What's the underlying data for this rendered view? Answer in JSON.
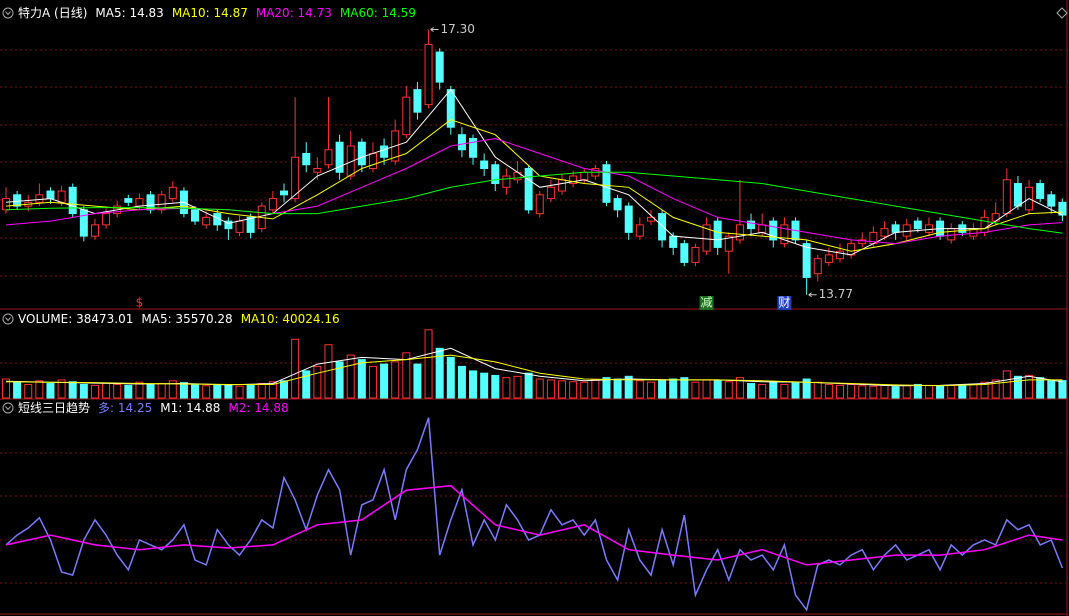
{
  "chart_data": [
    {
      "type": "candlestick",
      "title": "特力A (日线)",
      "up_color": "#ff3232",
      "down_color": "#54ffff",
      "ylim": [
        13.7,
        17.4
      ],
      "open": [
        14.9,
        15.1,
        14.95,
        15.0,
        15.15,
        15.0,
        15.2,
        14.9,
        14.55,
        14.7,
        14.85,
        15.05,
        14.95,
        15.1,
        14.9,
        15.05,
        15.15,
        14.9,
        14.7,
        14.85,
        14.75,
        14.6,
        14.8,
        14.65,
        14.9,
        15.15,
        15.05,
        15.65,
        15.4,
        15.5,
        15.8,
        15.35,
        15.8,
        15.45,
        15.75,
        15.55,
        15.9,
        16.5,
        16.3,
        17.0,
        16.5,
        15.9,
        15.85,
        15.55,
        15.5,
        15.2,
        15.3,
        15.45,
        14.85,
        15.05,
        15.15,
        15.25,
        15.3,
        15.35,
        15.5,
        15.05,
        14.95,
        14.55,
        14.75,
        14.85,
        14.55,
        14.45,
        14.2,
        14.35,
        14.75,
        14.35,
        14.5,
        14.75,
        14.6,
        14.75,
        14.45,
        14.75,
        14.45,
        14.05,
        14.2,
        14.25,
        14.3,
        14.45,
        14.45,
        14.55,
        14.7,
        14.55,
        14.75,
        14.6,
        14.75,
        14.5,
        14.7,
        14.55,
        14.6,
        14.75,
        14.85,
        15.25,
        14.9,
        15.25,
        15.1,
        15.0
      ],
      "high": [
        15.2,
        15.15,
        15.1,
        15.25,
        15.2,
        15.22,
        15.25,
        14.95,
        14.78,
        14.92,
        15.02,
        15.1,
        15.12,
        15.15,
        15.15,
        15.28,
        15.2,
        14.95,
        14.88,
        14.9,
        14.8,
        14.82,
        14.85,
        15.0,
        15.15,
        15.25,
        16.4,
        15.8,
        15.6,
        16.4,
        15.9,
        15.95,
        15.85,
        15.8,
        15.85,
        16.1,
        16.55,
        16.6,
        17.3,
        17.05,
        16.55,
        16.0,
        15.9,
        15.65,
        15.55,
        15.45,
        15.55,
        15.5,
        15.15,
        15.3,
        15.38,
        15.42,
        15.45,
        15.5,
        15.55,
        15.1,
        15.0,
        14.8,
        14.9,
        14.9,
        14.6,
        14.5,
        14.45,
        14.8,
        14.8,
        14.6,
        15.3,
        14.85,
        14.85,
        14.8,
        14.8,
        14.8,
        14.5,
        14.3,
        14.4,
        14.45,
        14.5,
        14.6,
        14.68,
        14.75,
        14.75,
        14.78,
        14.8,
        14.8,
        14.8,
        14.72,
        14.75,
        14.72,
        14.9,
        15.0,
        15.45,
        15.35,
        15.3,
        15.3,
        15.15,
        15.05
      ],
      "low": [
        14.85,
        14.9,
        14.88,
        14.95,
        14.98,
        14.95,
        14.8,
        14.48,
        14.5,
        14.65,
        14.8,
        14.95,
        14.9,
        14.85,
        14.85,
        15.0,
        14.8,
        14.7,
        14.65,
        14.62,
        14.5,
        14.55,
        14.52,
        14.6,
        14.85,
        15.0,
        15.0,
        15.4,
        15.3,
        15.45,
        15.3,
        15.3,
        15.4,
        15.4,
        15.5,
        15.5,
        15.85,
        16.1,
        16.25,
        16.5,
        15.9,
        15.6,
        15.5,
        15.35,
        15.15,
        15.1,
        15.25,
        14.85,
        14.8,
        15.0,
        15.1,
        15.2,
        15.25,
        15.3,
        14.95,
        14.8,
        14.5,
        14.5,
        14.7,
        14.4,
        14.3,
        14.15,
        14.15,
        14.3,
        14.3,
        14.05,
        14.45,
        14.55,
        14.55,
        14.4,
        14.4,
        14.45,
        13.77,
        13.95,
        14.15,
        14.2,
        14.25,
        14.4,
        14.4,
        14.5,
        14.5,
        14.5,
        14.6,
        14.55,
        14.5,
        14.45,
        14.55,
        14.5,
        14.55,
        14.7,
        14.8,
        14.9,
        14.85,
        15.0,
        14.85,
        14.75
      ],
      "close": [
        15.05,
        14.95,
        15.0,
        15.1,
        15.05,
        15.15,
        14.85,
        14.55,
        14.7,
        14.85,
        14.95,
        15.0,
        15.05,
        14.9,
        15.1,
        15.2,
        14.85,
        14.75,
        14.8,
        14.7,
        14.65,
        14.75,
        14.6,
        14.95,
        15.05,
        15.1,
        15.6,
        15.5,
        15.45,
        15.7,
        15.4,
        15.75,
        15.5,
        15.65,
        15.6,
        15.95,
        16.4,
        16.2,
        17.1,
        16.6,
        16.0,
        15.7,
        15.6,
        15.45,
        15.25,
        15.35,
        15.4,
        14.9,
        15.1,
        15.2,
        15.3,
        15.35,
        15.4,
        15.45,
        15.0,
        14.9,
        14.6,
        14.7,
        14.8,
        14.5,
        14.4,
        14.2,
        14.4,
        14.7,
        14.4,
        14.55,
        14.7,
        14.65,
        14.7,
        14.5,
        14.7,
        14.5,
        14.0,
        14.25,
        14.3,
        14.35,
        14.45,
        14.5,
        14.6,
        14.65,
        14.6,
        14.7,
        14.65,
        14.7,
        14.55,
        14.65,
        14.6,
        14.65,
        14.8,
        14.85,
        15.3,
        14.95,
        15.2,
        15.05,
        14.95,
        14.83
      ],
      "max_label": "17.30",
      "min_label": "13.77",
      "signals": [
        {
          "text": "$",
          "x": 12,
          "color": "#ff3030"
        },
        {
          "text": "减",
          "x": 63,
          "color": "#c8ffc8",
          "bg": "#1e6e1e"
        },
        {
          "text": "财",
          "x": 70,
          "color": "#ffffff",
          "bg": "#2040c0"
        }
      ],
      "series": [
        {
          "name": "MA5: 14.83",
          "color": "#ffffff",
          "x": [
            0,
            4,
            8,
            12,
            16,
            20,
            24,
            28,
            32,
            36,
            40,
            44,
            48,
            52,
            56,
            60,
            64,
            68,
            72,
            76,
            80,
            84,
            88,
            92,
            95
          ],
          "values": [
            15.0,
            15.05,
            14.85,
            14.95,
            15.0,
            14.72,
            14.85,
            15.35,
            15.6,
            15.8,
            16.5,
            15.6,
            15.2,
            15.3,
            15.1,
            14.55,
            14.5,
            14.6,
            14.4,
            14.3,
            14.6,
            14.65,
            14.65,
            15.05,
            14.83
          ]
        },
        {
          "name": "MA10: 14.87",
          "color": "#ffff00",
          "x": [
            0,
            4,
            8,
            12,
            16,
            20,
            24,
            28,
            32,
            36,
            40,
            44,
            48,
            52,
            56,
            60,
            64,
            68,
            72,
            76,
            80,
            84,
            88,
            92,
            95
          ],
          "values": [
            14.95,
            15.0,
            14.95,
            14.9,
            14.95,
            14.85,
            14.78,
            15.1,
            15.45,
            15.65,
            16.1,
            15.9,
            15.35,
            15.25,
            15.2,
            14.8,
            14.6,
            14.55,
            14.5,
            14.35,
            14.45,
            14.6,
            14.65,
            14.85,
            14.87
          ]
        },
        {
          "name": "MA20: 14.73",
          "color": "#ff00ff",
          "x": [
            0,
            4,
            8,
            12,
            16,
            20,
            24,
            28,
            32,
            36,
            40,
            44,
            48,
            52,
            56,
            60,
            64,
            68,
            72,
            76,
            80,
            84,
            88,
            92,
            95
          ],
          "values": [
            14.7,
            14.75,
            14.85,
            14.9,
            14.92,
            14.9,
            14.85,
            14.95,
            15.2,
            15.45,
            15.75,
            15.85,
            15.65,
            15.45,
            15.35,
            15.05,
            14.8,
            14.7,
            14.6,
            14.5,
            14.45,
            14.55,
            14.6,
            14.7,
            14.73
          ]
        },
        {
          "name": "MA60: 14.59",
          "color": "#00ff00",
          "x": [
            0,
            4,
            8,
            12,
            16,
            20,
            24,
            28,
            32,
            36,
            40,
            44,
            48,
            52,
            56,
            60,
            64,
            68,
            72,
            76,
            80,
            84,
            88,
            92,
            95
          ],
          "values": [
            14.9,
            14.92,
            14.93,
            14.93,
            14.92,
            14.9,
            14.85,
            14.85,
            14.95,
            15.05,
            15.2,
            15.3,
            15.35,
            15.4,
            15.4,
            15.35,
            15.3,
            15.25,
            15.15,
            15.05,
            14.95,
            14.85,
            14.75,
            14.65,
            14.59
          ]
        }
      ]
    },
    {
      "type": "volume",
      "ylim": [
        0,
        155000
      ],
      "series": [
        {
          "name": "VOLUME: 38473.01",
          "color": "#ffffff",
          "values": [
            42000,
            35000,
            30000,
            38000,
            32000,
            40000,
            36000,
            30000,
            28000,
            33000,
            30000,
            28000,
            35000,
            30000,
            32000,
            38000,
            34000,
            29000,
            27000,
            30000,
            28000,
            26000,
            30000,
            32000,
            36000,
            38000,
            130000,
            60000,
            70000,
            118000,
            80000,
            95000,
            85000,
            70000,
            75000,
            80000,
            100000,
            75000,
            151000,
            110000,
            90000,
            70000,
            60000,
            55000,
            50000,
            45000,
            48000,
            55000,
            42000,
            40000,
            38000,
            36000,
            35000,
            40000,
            45000,
            42000,
            48000,
            38000,
            35000,
            40000,
            42000,
            45000,
            35000,
            40000,
            38000,
            36000,
            45000,
            32000,
            30000,
            35000,
            30000,
            33000,
            42000,
            35000,
            30000,
            28000,
            30000,
            27000,
            26000,
            28000,
            25000,
            27000,
            30000,
            28000,
            26000,
            28000,
            27000,
            30000,
            35000,
            40000,
            60000,
            48000,
            50000,
            45000,
            40000,
            38473.01
          ]
        },
        {
          "name": "MA5: 35570.28",
          "color": "#ffffff",
          "x": [
            0,
            4,
            8,
            12,
            16,
            20,
            24,
            28,
            32,
            36,
            40,
            44,
            48,
            52,
            56,
            60,
            64,
            68,
            72,
            76,
            80,
            84,
            88,
            92,
            95
          ],
          "values": [
            37000,
            35000,
            33000,
            31000,
            32000,
            29000,
            32000,
            75000,
            90000,
            85000,
            110000,
            65000,
            48000,
            38000,
            42000,
            40000,
            40000,
            36000,
            35000,
            31000,
            27000,
            28000,
            32000,
            48000,
            35570.28
          ]
        },
        {
          "name": "MA10: 40024.16",
          "color": "#ffff00",
          "x": [
            0,
            4,
            8,
            12,
            16,
            20,
            24,
            28,
            32,
            36,
            40,
            44,
            48,
            52,
            56,
            60,
            64,
            68,
            72,
            76,
            80,
            84,
            88,
            92,
            95
          ],
          "values": [
            36000,
            35000,
            34000,
            32000,
            31000,
            30000,
            30000,
            55000,
            78000,
            85000,
            95000,
            80000,
            55000,
            42000,
            40000,
            40000,
            40000,
            38000,
            35000,
            32000,
            29000,
            27000,
            30000,
            40000,
            40024.16
          ]
        }
      ]
    },
    {
      "type": "line",
      "title": "短线三日趋势",
      "ylim": [
        13.26,
        17.69
      ],
      "series": [
        {
          "name": "多: 14.25",
          "color": "#7b7bff",
          "values": [
            14.77,
            14.99,
            15.15,
            15.38,
            14.88,
            14.16,
            14.09,
            14.88,
            15.33,
            14.99,
            14.54,
            14.21,
            14.88,
            14.77,
            14.66,
            14.88,
            15.22,
            14.43,
            14.32,
            15.11,
            14.77,
            14.54,
            14.88,
            15.33,
            15.15,
            16.28,
            15.78,
            15.11,
            15.89,
            16.46,
            16.01,
            14.54,
            15.67,
            15.78,
            16.46,
            15.33,
            16.46,
            16.91,
            17.63,
            14.54,
            15.33,
            16.01,
            14.77,
            15.33,
            14.88,
            15.67,
            15.33,
            14.88,
            14.99,
            15.56,
            15.22,
            15.33,
            14.99,
            15.33,
            14.43,
            13.98,
            15.11,
            14.43,
            14.09,
            15.11,
            14.32,
            15.44,
            13.64,
            14.21,
            14.66,
            13.98,
            14.66,
            14.43,
            14.54,
            14.21,
            14.77,
            13.64,
            13.31,
            14.32,
            14.43,
            14.32,
            14.54,
            14.66,
            14.21,
            14.54,
            14.77,
            14.43,
            14.54,
            14.66,
            14.21,
            14.77,
            14.54,
            14.77,
            14.88,
            14.77,
            15.33,
            15.11,
            15.22,
            14.77,
            14.88,
            14.25
          ]
        },
        {
          "name": "M1: 14.88",
          "color": "#ffffff"
        },
        {
          "name": "M2: 14.88",
          "color": "#ff00ff",
          "x": [
            0,
            4,
            8,
            12,
            16,
            20,
            24,
            28,
            32,
            36,
            40,
            44,
            48,
            52,
            56,
            60,
            64,
            68,
            72,
            76,
            80,
            84,
            88,
            92,
            95
          ],
          "values": [
            14.77,
            14.99,
            14.77,
            14.66,
            14.77,
            14.7,
            14.77,
            15.22,
            15.33,
            16.0,
            16.1,
            15.22,
            14.99,
            15.22,
            14.66,
            14.54,
            14.43,
            14.66,
            14.32,
            14.43,
            14.54,
            14.54,
            14.66,
            14.99,
            14.88
          ]
        }
      ]
    }
  ]
}
